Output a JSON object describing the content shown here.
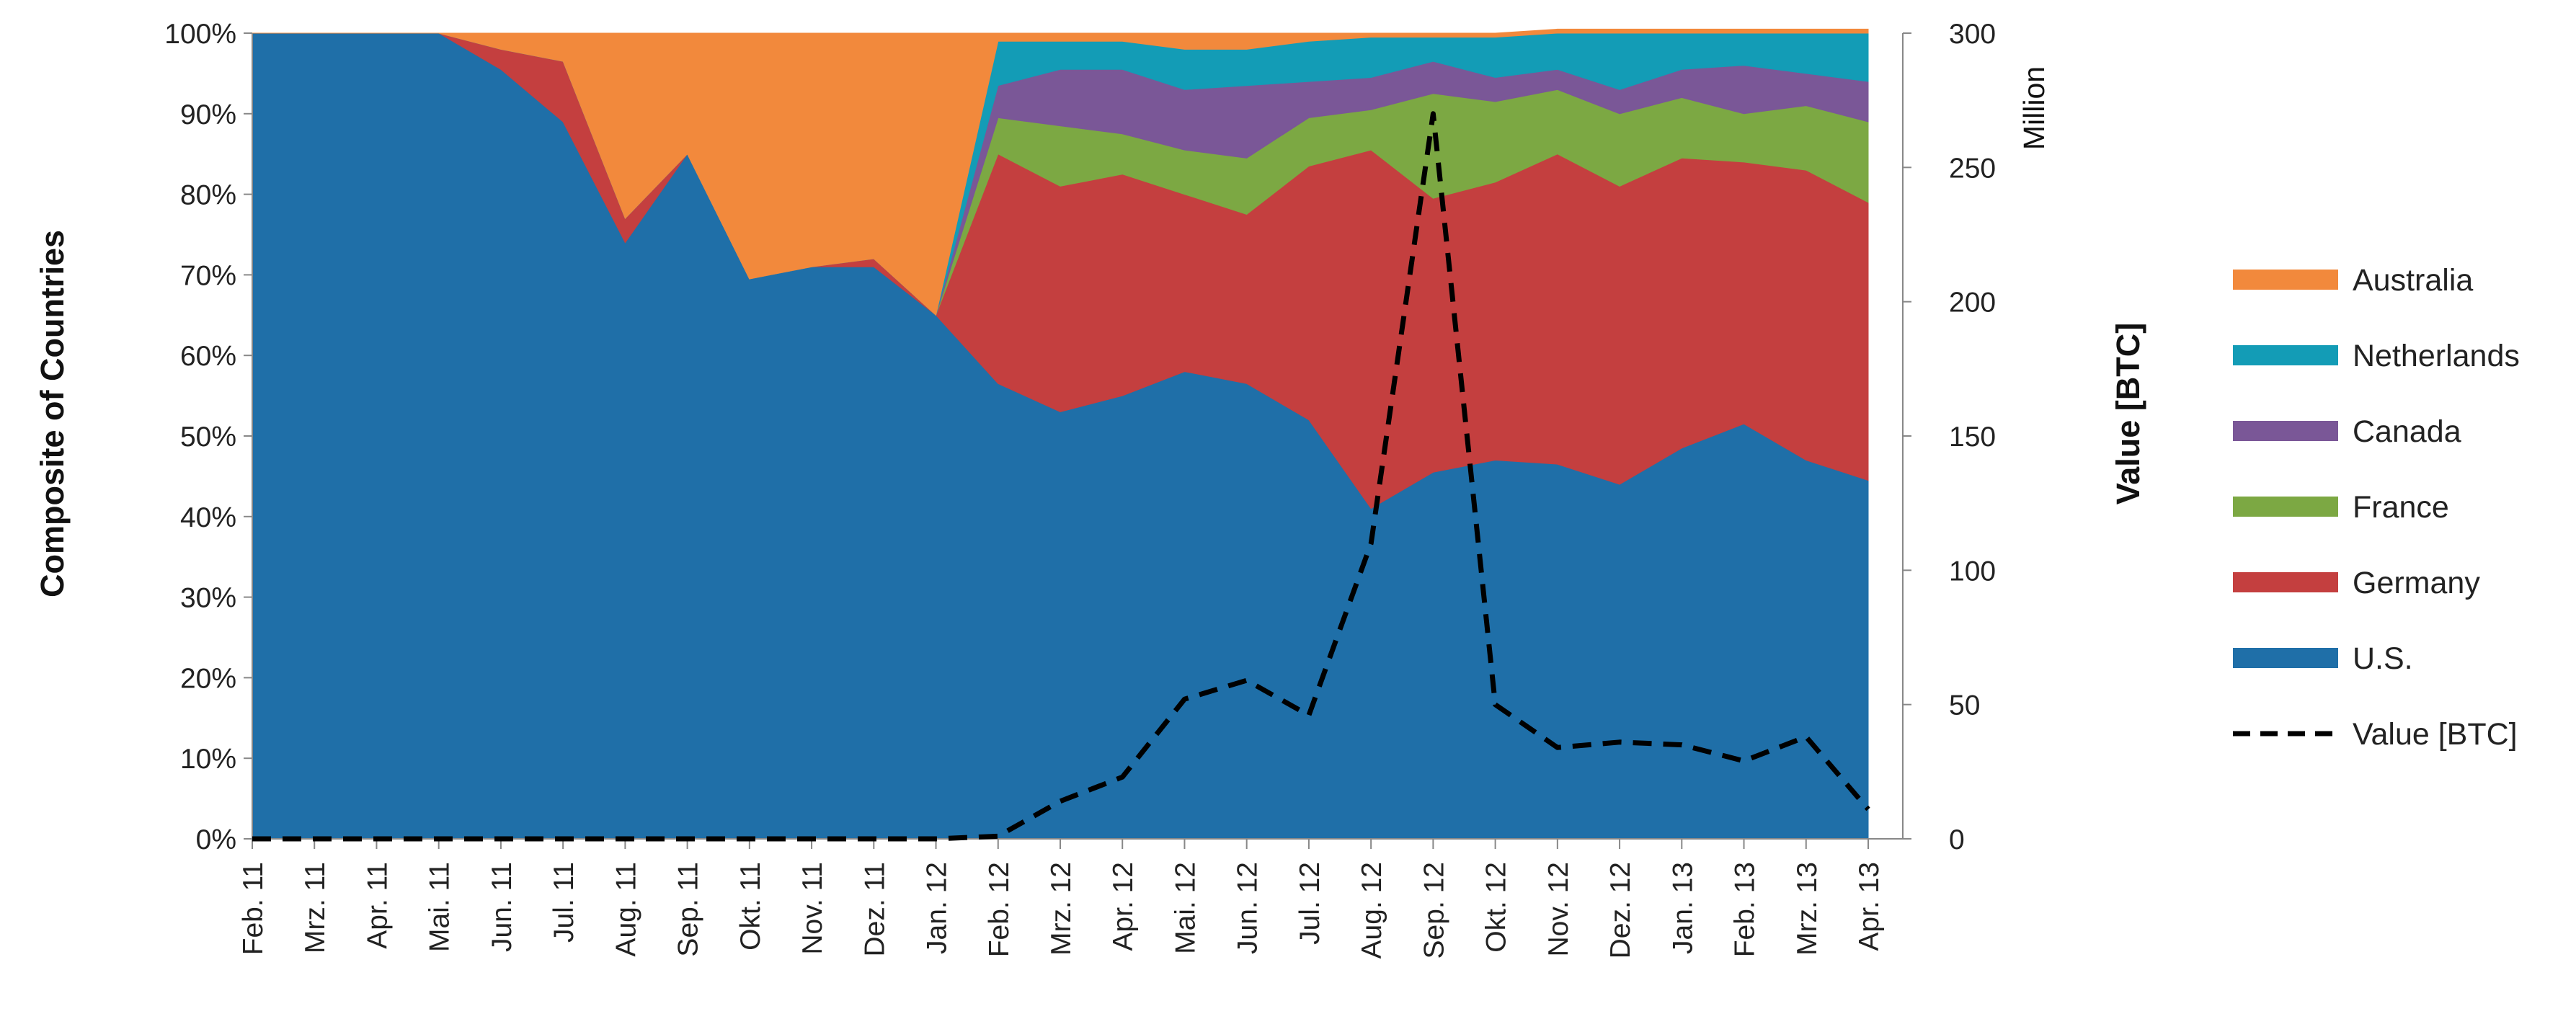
{
  "chart_data": {
    "type": "area",
    "stacking": "percent",
    "categories": [
      "Feb. 11",
      "Mrz. 11",
      "Apr. 11",
      "Mai. 11",
      "Jun. 11",
      "Jul. 11",
      "Aug. 11",
      "Sep. 11",
      "Okt. 11",
      "Nov. 11",
      "Dez. 11",
      "Jan. 12",
      "Feb. 12",
      "Mrz. 12",
      "Apr. 12",
      "Mai. 12",
      "Jun. 12",
      "Jul. 12",
      "Aug. 12",
      "Sep. 12",
      "Okt. 12",
      "Nov. 12",
      "Dez. 12",
      "Jan. 13",
      "Feb. 13",
      "Mrz. 13",
      "Apr. 13"
    ],
    "series": [
      {
        "name": "U.S.",
        "color": "#1F6FA8",
        "values": [
          100,
          100,
          100,
          100,
          95.5,
          89,
          74,
          85,
          69.5,
          71,
          71,
          65,
          56.5,
          53,
          55,
          58,
          56.5,
          52,
          41,
          45.5,
          47,
          46.5,
          44,
          48.5,
          51.5,
          47,
          44.5
        ]
      },
      {
        "name": "Germany",
        "color": "#C43F3F",
        "values": [
          0,
          0,
          0,
          0,
          2.5,
          7.5,
          3,
          0,
          0,
          0,
          1,
          0,
          28.5,
          28,
          27.5,
          22,
          21,
          31.5,
          44.5,
          34,
          34.5,
          38.5,
          37,
          36,
          32.5,
          36,
          34.5
        ]
      },
      {
        "name": "France",
        "color": "#7CA843",
        "values": [
          0,
          0,
          0,
          0,
          0,
          0,
          0,
          0,
          0,
          0,
          0,
          0,
          4.5,
          7.5,
          5,
          5.5,
          7,
          6,
          5,
          13,
          10,
          8,
          9,
          7.5,
          6,
          8,
          10
        ]
      },
      {
        "name": "Canada",
        "color": "#7A5797",
        "values": [
          0,
          0,
          0,
          0,
          0,
          0,
          0,
          0,
          0,
          0,
          0,
          0,
          4,
          7,
          8,
          7.5,
          9,
          4.5,
          4,
          4,
          3,
          2.5,
          3,
          3.5,
          6,
          4,
          5
        ]
      },
      {
        "name": "Netherlands",
        "color": "#139CB6",
        "values": [
          0,
          0,
          0,
          0,
          0,
          0,
          0,
          0,
          0,
          0,
          0,
          0,
          5.5,
          3.5,
          3.5,
          5,
          4.5,
          5,
          5,
          3,
          5,
          4.5,
          7,
          4.5,
          4,
          5,
          6
        ]
      },
      {
        "name": "Australia",
        "color": "#F2893C",
        "values": [
          0,
          0,
          0,
          0,
          2,
          3.5,
          23,
          15,
          30.5,
          29,
          28,
          35,
          1,
          1,
          1,
          2,
          2,
          1,
          0.5,
          0.5,
          0.5,
          0.5,
          0.5,
          0.5,
          0.5,
          0.5,
          0.5
        ]
      }
    ],
    "line_series": {
      "name": "Value [BTC]",
      "axis": "right",
      "style": "dashed",
      "color": "#000000",
      "values": [
        0,
        0,
        0,
        0,
        0,
        0,
        0,
        0,
        0,
        0,
        0,
        0,
        1,
        14,
        23,
        52,
        59,
        46,
        110,
        270,
        50,
        34,
        36,
        35,
        29,
        38,
        11
      ]
    },
    "left_axis": {
      "label": "Composite of Countries",
      "ylim": [
        0,
        100
      ],
      "ticks": [
        "0%",
        "10%",
        "20%",
        "30%",
        "40%",
        "50%",
        "60%",
        "70%",
        "80%",
        "90%",
        "100%"
      ]
    },
    "right_axis": {
      "label": "Value [BTC]",
      "unit": "Million",
      "ylim": [
        0,
        300
      ],
      "ticks": [
        "0",
        "50",
        "100",
        "150",
        "200",
        "250",
        "300"
      ]
    },
    "legend": {
      "placement": "right",
      "entries": [
        "Australia",
        "Netherlands",
        "Canada",
        "France",
        "Germany",
        "U.S.",
        "Value [BTC]"
      ]
    },
    "grid": false
  }
}
